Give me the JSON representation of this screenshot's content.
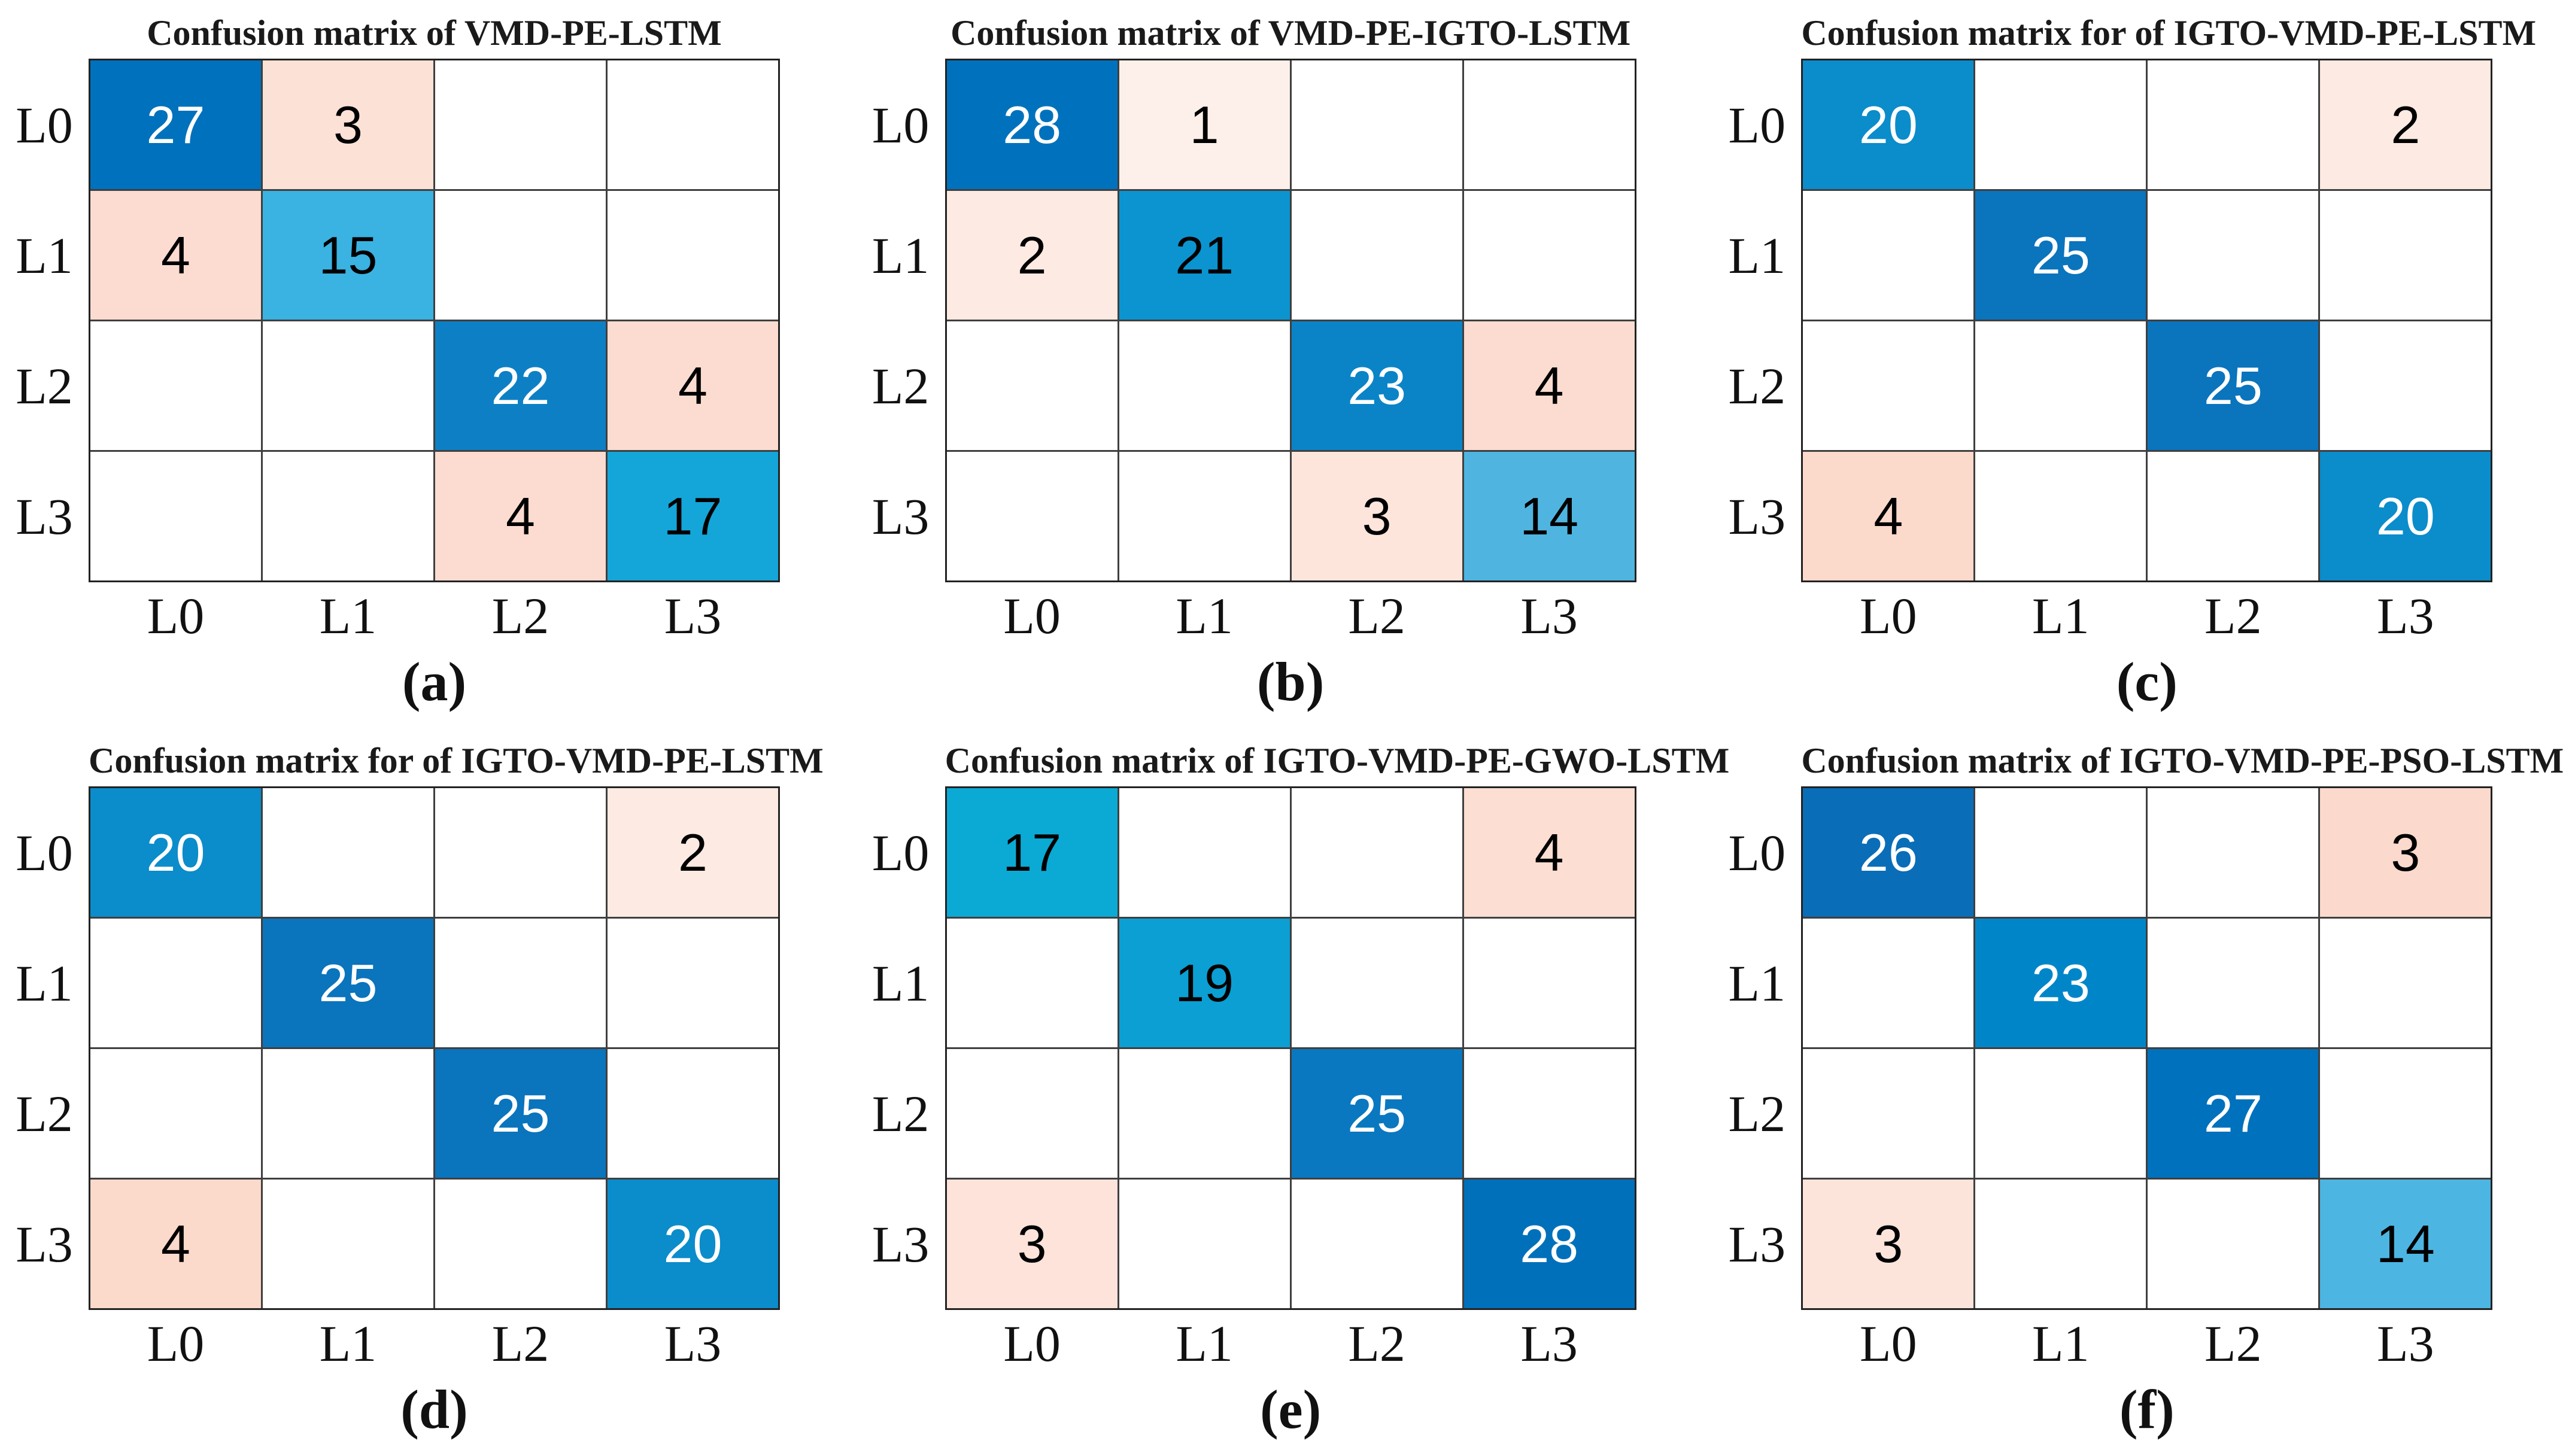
{
  "chart_data": [
    {
      "type": "heatmap",
      "title": "Confusion matrix of VMD-PE-LSTM",
      "caption": "(a)",
      "x_labels": [
        "L0",
        "L1",
        "L2",
        "L3"
      ],
      "y_labels": [
        "L0",
        "L1",
        "L2",
        "L3"
      ],
      "values": [
        [
          27,
          3,
          null,
          null
        ],
        [
          4,
          15,
          null,
          null
        ],
        [
          null,
          null,
          22,
          4
        ],
        [
          null,
          null,
          4,
          17
        ]
      ],
      "cell_styles": [
        [
          {
            "bg": "#0071bc",
            "fg": "#ffffff"
          },
          {
            "bg": "#fce1d7",
            "fg": "#000000"
          },
          null,
          null
        ],
        [
          {
            "bg": "#fcdcd0",
            "fg": "#000000"
          },
          {
            "bg": "#3ab2e2",
            "fg": "#000000"
          },
          null,
          null
        ],
        [
          null,
          null,
          {
            "bg": "#0d80c5",
            "fg": "#ffffff"
          },
          {
            "bg": "#fcdcd0",
            "fg": "#000000"
          }
        ],
        [
          null,
          null,
          {
            "bg": "#fcdcd0",
            "fg": "#000000"
          },
          {
            "bg": "#14a6d8",
            "fg": "#000000"
          }
        ]
      ]
    },
    {
      "type": "heatmap",
      "title": "Confusion matrix of VMD-PE-IGTO-LSTM",
      "caption": "(b)",
      "x_labels": [
        "L0",
        "L1",
        "L2",
        "L3"
      ],
      "y_labels": [
        "L0",
        "L1",
        "L2",
        "L3"
      ],
      "values": [
        [
          28,
          1,
          null,
          null
        ],
        [
          2,
          21,
          null,
          null
        ],
        [
          null,
          null,
          23,
          4
        ],
        [
          null,
          null,
          3,
          14
        ]
      ],
      "cell_styles": [
        [
          {
            "bg": "#0072bd",
            "fg": "#ffffff"
          },
          {
            "bg": "#fdf0ea",
            "fg": "#000000"
          },
          null,
          null
        ],
        [
          {
            "bg": "#fdeae2",
            "fg": "#000000"
          },
          {
            "bg": "#0b94d0",
            "fg": "#000000"
          },
          null,
          null
        ],
        [
          null,
          null,
          {
            "bg": "#0a84c7",
            "fg": "#ffffff"
          },
          {
            "bg": "#fcdcd0",
            "fg": "#000000"
          }
        ],
        [
          null,
          null,
          {
            "bg": "#fde5dc",
            "fg": "#000000"
          },
          {
            "bg": "#4fb5e0",
            "fg": "#000000"
          }
        ]
      ]
    },
    {
      "type": "heatmap",
      "title": "Confusion matrix for of IGTO-VMD-PE-LSTM",
      "caption": "(c)",
      "x_labels": [
        "L0",
        "L1",
        "L2",
        "L3"
      ],
      "y_labels": [
        "L0",
        "L1",
        "L2",
        "L3"
      ],
      "values": [
        [
          20,
          null,
          null,
          2
        ],
        [
          null,
          25,
          null,
          null
        ],
        [
          null,
          null,
          25,
          null
        ],
        [
          4,
          null,
          null,
          20
        ]
      ],
      "cell_styles": [
        [
          {
            "bg": "#0b8ccb",
            "fg": "#ffffff"
          },
          null,
          null,
          {
            "bg": "#fdeae2",
            "fg": "#000000"
          }
        ],
        [
          null,
          {
            "bg": "#0a74bd",
            "fg": "#ffffff"
          },
          null,
          null
        ],
        [
          null,
          null,
          {
            "bg": "#0a74bd",
            "fg": "#ffffff"
          },
          null
        ],
        [
          {
            "bg": "#fbd9cb",
            "fg": "#000000"
          },
          null,
          null,
          {
            "bg": "#0b8ccb",
            "fg": "#ffffff"
          }
        ]
      ]
    },
    {
      "type": "heatmap",
      "title": "Confusion matrix for of IGTO-VMD-PE-LSTM",
      "caption": "(d)",
      "x_labels": [
        "L0",
        "L1",
        "L2",
        "L3"
      ],
      "y_labels": [
        "L0",
        "L1",
        "L2",
        "L3"
      ],
      "values": [
        [
          20,
          null,
          null,
          2
        ],
        [
          null,
          25,
          null,
          null
        ],
        [
          null,
          null,
          25,
          null
        ],
        [
          4,
          null,
          null,
          20
        ]
      ],
      "cell_styles": [
        [
          {
            "bg": "#0b8ccb",
            "fg": "#ffffff"
          },
          null,
          null,
          {
            "bg": "#fdeae2",
            "fg": "#000000"
          }
        ],
        [
          null,
          {
            "bg": "#0a74bd",
            "fg": "#ffffff"
          },
          null,
          null
        ],
        [
          null,
          null,
          {
            "bg": "#0a74bd",
            "fg": "#ffffff"
          },
          null
        ],
        [
          {
            "bg": "#fbd9cb",
            "fg": "#000000"
          },
          null,
          null,
          {
            "bg": "#0b8ccb",
            "fg": "#ffffff"
          }
        ]
      ]
    },
    {
      "type": "heatmap",
      "title": "Confusion matrix of IGTO-VMD-PE-GWO-LSTM",
      "caption": "(e)",
      "x_labels": [
        "L0",
        "L1",
        "L2",
        "L3"
      ],
      "y_labels": [
        "L0",
        "L1",
        "L2",
        "L3"
      ],
      "values": [
        [
          17,
          null,
          null,
          4
        ],
        [
          null,
          19,
          null,
          null
        ],
        [
          null,
          null,
          25,
          null
        ],
        [
          3,
          null,
          null,
          28
        ]
      ],
      "cell_styles": [
        [
          {
            "bg": "#0aaad4",
            "fg": "#000000"
          },
          null,
          null,
          {
            "bg": "#fcded3",
            "fg": "#000000"
          }
        ],
        [
          null,
          {
            "bg": "#0b9fd3",
            "fg": "#000000"
          },
          null,
          null
        ],
        [
          null,
          null,
          {
            "bg": "#0a78c0",
            "fg": "#ffffff"
          },
          null
        ],
        [
          {
            "bg": "#fde3da",
            "fg": "#000000"
          },
          null,
          null,
          {
            "bg": "#0070ba",
            "fg": "#ffffff"
          }
        ]
      ]
    },
    {
      "type": "heatmap",
      "title": "Confusion matrix of IGTO-VMD-PE-PSO-LSTM",
      "caption": "(f)",
      "x_labels": [
        "L0",
        "L1",
        "L2",
        "L3"
      ],
      "y_labels": [
        "L0",
        "L1",
        "L2",
        "L3"
      ],
      "values": [
        [
          26,
          null,
          null,
          3
        ],
        [
          null,
          23,
          null,
          null
        ],
        [
          null,
          null,
          27,
          null
        ],
        [
          3,
          null,
          null,
          14
        ]
      ],
      "cell_styles": [
        [
          {
            "bg": "#0a6db8",
            "fg": "#ffffff"
          },
          null,
          null,
          {
            "bg": "#fbdacd",
            "fg": "#000000"
          }
        ],
        [
          null,
          {
            "bg": "#0086c8",
            "fg": "#ffffff"
          },
          null,
          null
        ],
        [
          null,
          null,
          {
            "bg": "#0071bc",
            "fg": "#ffffff"
          },
          null
        ],
        [
          {
            "bg": "#fce4da",
            "fg": "#000000"
          },
          null,
          null,
          {
            "bg": "#4db5e2",
            "fg": "#000000"
          }
        ]
      ]
    }
  ]
}
